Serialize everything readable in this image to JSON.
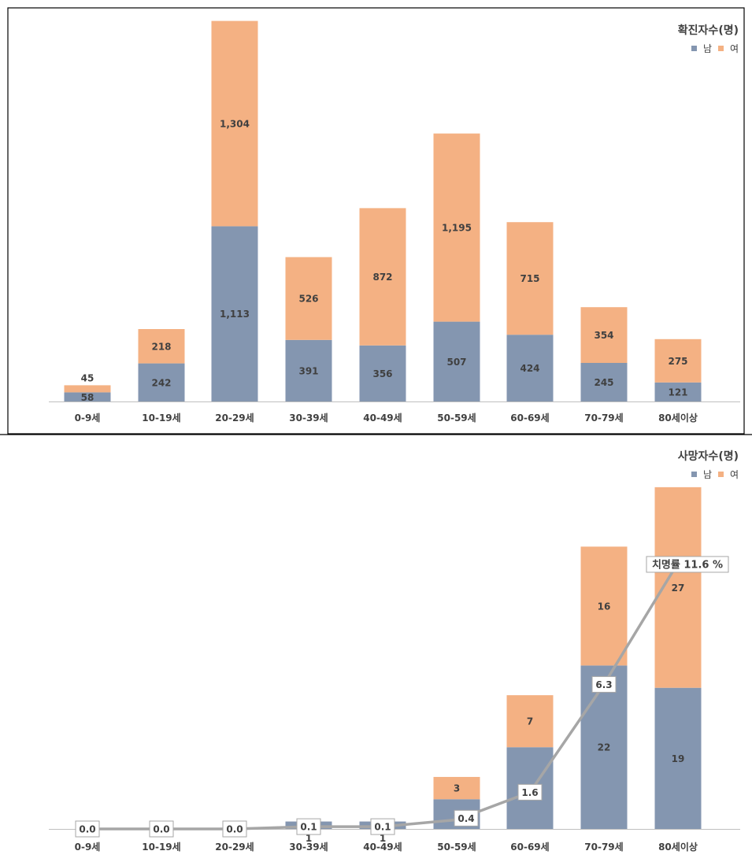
{
  "chart_data": [
    {
      "type": "bar",
      "stacked": true,
      "title": "확진자수(명)",
      "categories": [
        "0-9세",
        "10-19세",
        "20-29세",
        "30-39세",
        "40-49세",
        "50-59세",
        "60-69세",
        "70-79세",
        "80세이상"
      ],
      "legend": {
        "position": "top-right"
      },
      "ylim": [
        0,
        2500
      ],
      "grid": false,
      "series": [
        {
          "name": "남",
          "color": "#8496B0",
          "values": [
            58,
            242,
            1113,
            391,
            356,
            507,
            424,
            245,
            121
          ],
          "labels": [
            "58",
            "242",
            "1,113",
            "391",
            "356",
            "507",
            "424",
            "245",
            "121"
          ]
        },
        {
          "name": "여",
          "color": "#F4B183",
          "values": [
            45,
            218,
            1304,
            526,
            872,
            1195,
            715,
            354,
            275
          ],
          "labels": [
            "45",
            "218",
            "1,304",
            "526",
            "872",
            "1,195",
            "715",
            "354",
            "275"
          ]
        }
      ]
    },
    {
      "type": "bar",
      "stacked": true,
      "title": "사망자수(명)",
      "categories": [
        "0-9세",
        "10-19세",
        "20-29세",
        "30-39세",
        "40-49세",
        "50-59세",
        "60-69세",
        "70-79세",
        "80세이상"
      ],
      "legend": {
        "position": "top-right"
      },
      "ylim": [
        0,
        48
      ],
      "grid": false,
      "series": [
        {
          "name": "남",
          "color": "#8496B0",
          "values": [
            0,
            0,
            0,
            1,
            1,
            4,
            11,
            22,
            19
          ],
          "labels": [
            "",
            "",
            "",
            "1",
            "1",
            "4",
            "11",
            "22",
            "19"
          ]
        },
        {
          "name": "여",
          "color": "#F4B183",
          "values": [
            0,
            0,
            0,
            0,
            0,
            3,
            7,
            16,
            27
          ],
          "labels": [
            "",
            "",
            "",
            "",
            "",
            "3",
            "7",
            "16",
            "27"
          ]
        }
      ],
      "line_series": {
        "color": "#A6A6A6",
        "values": [
          0.0,
          0.0,
          0.0,
          0.1,
          0.1,
          0.4,
          1.6,
          6.3,
          11.6
        ],
        "labels": [
          "0.0",
          "0.0",
          "0.0",
          "0.1",
          "0.1",
          "0.4",
          "1.6",
          "6.3",
          "치명률 11.6 %"
        ],
        "ylim": [
          0,
          14
        ]
      }
    }
  ]
}
